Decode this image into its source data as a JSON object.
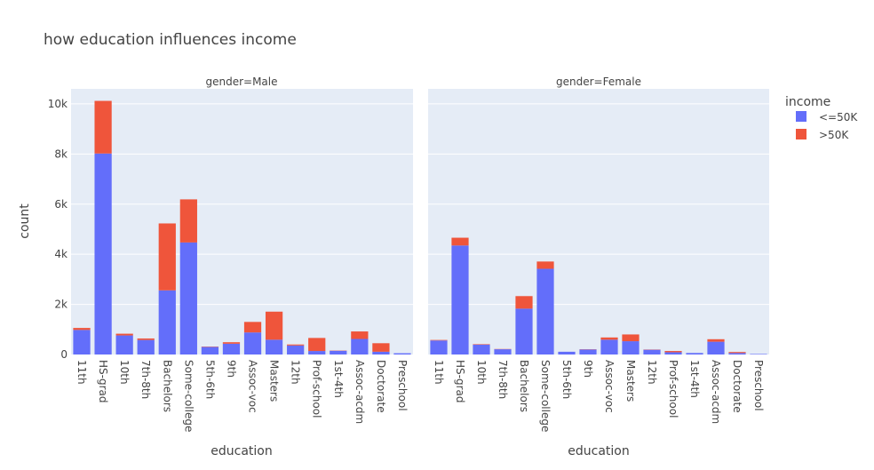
{
  "chart_data": {
    "type": "bar",
    "barmode": "stack",
    "title": "how education influences income",
    "xlabel": "education",
    "ylabel": "count",
    "ylim": [
      0,
      10600
    ],
    "yticks": [
      0,
      2000,
      4000,
      6000,
      8000,
      10000
    ],
    "ytick_labels": [
      "0",
      "2k",
      "4k",
      "6k",
      "8k",
      "10k"
    ],
    "grid": true,
    "legend": {
      "title": "income",
      "placement": "right",
      "entries": [
        {
          "name": "<=50K",
          "color": "#636efa"
        },
        {
          "name": ">50K",
          "color": "#EF553B"
        }
      ]
    },
    "categories": [
      "11th",
      "HS-grad",
      "10th",
      "7th-8th",
      "Bachelors",
      "Some-college",
      "5th-6th",
      "9th",
      "Assoc-voc",
      "Masters",
      "12th",
      "Prof-school",
      "1st-4th",
      "Assoc-acdm",
      "Doctorate",
      "Preschool"
    ],
    "facets": [
      {
        "label": "gender=Male",
        "series": [
          {
            "name": "<=50K",
            "values": [
              980,
              8020,
              760,
              580,
              2560,
              4470,
              300,
              430,
              880,
              590,
              360,
              140,
              150,
              620,
              110,
              50
            ]
          },
          {
            "name": ">50K",
            "values": [
              80,
              2100,
              70,
              60,
              2670,
              1720,
              15,
              60,
              420,
              1120,
              40,
              520,
              10,
              300,
              340,
              0
            ]
          }
        ]
      },
      {
        "label": "gender=Female",
        "series": [
          {
            "name": "<=50K",
            "values": [
              560,
              4350,
              390,
              210,
              1830,
              3420,
              110,
              200,
              590,
              530,
              190,
              90,
              60,
              510,
              60,
              20
            ]
          },
          {
            "name": ">50K",
            "values": [
              20,
              310,
              20,
              10,
              500,
              290,
              0,
              10,
              90,
              270,
              10,
              50,
              0,
              100,
              40,
              0
            ]
          }
        ]
      }
    ]
  }
}
